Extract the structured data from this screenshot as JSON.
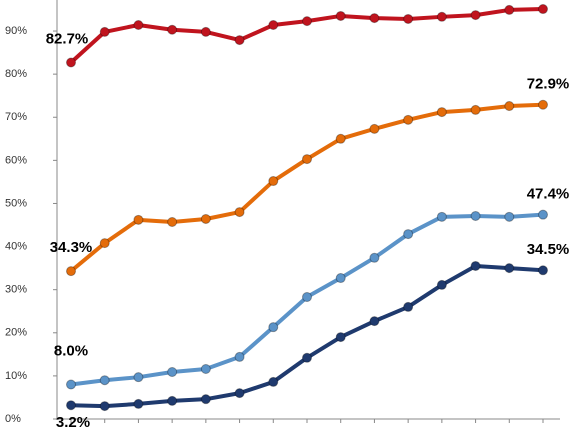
{
  "chart_data": {
    "type": "line",
    "categories": [
      null,
      null,
      null,
      null,
      null,
      null,
      null,
      null,
      null,
      null,
      null,
      null,
      null,
      null,
      null
    ],
    "ylim": [
      0,
      97.2
    ],
    "yticks": [
      {
        "value": 0,
        "label": "0%"
      },
      {
        "value": 10,
        "label": "10%"
      },
      {
        "value": 20,
        "label": "20%"
      },
      {
        "value": 30,
        "label": "30%"
      },
      {
        "value": 40,
        "label": "40%"
      },
      {
        "value": 50,
        "label": "50%"
      },
      {
        "value": 60,
        "label": "60%"
      },
      {
        "value": 70,
        "label": "70%"
      },
      {
        "value": 80,
        "label": "80%"
      },
      {
        "value": 90,
        "label": "90%"
      }
    ],
    "grid": false,
    "series": [
      {
        "color": "#c0141e",
        "values": [
          82.7,
          89.8,
          91.4,
          90.3,
          89.8,
          87.9,
          91.4,
          92.3,
          93.5,
          93.0,
          92.8,
          93.3,
          93.7,
          94.9,
          95.1
        ],
        "value_labels": [
          "82.7%",
          null,
          null,
          null,
          null,
          null,
          null,
          null,
          null,
          null,
          null,
          null,
          null,
          null,
          null
        ]
      },
      {
        "color": "#e46c0a",
        "values": [
          34.3,
          40.8,
          46.2,
          45.7,
          46.4,
          48.0,
          55.2,
          60.3,
          65.0,
          67.3,
          69.4,
          71.2,
          71.7,
          72.6,
          72.9
        ],
        "value_labels": [
          "34.3%",
          null,
          null,
          null,
          null,
          null,
          null,
          null,
          null,
          null,
          null,
          null,
          null,
          null,
          "72.9%"
        ]
      },
      {
        "color": "#5b93c8",
        "values": [
          8.0,
          9.0,
          9.7,
          10.9,
          11.6,
          14.4,
          21.3,
          28.3,
          32.7,
          37.4,
          42.9,
          46.9,
          47.1,
          46.9,
          47.4
        ],
        "value_labels": [
          "8.0%",
          null,
          null,
          null,
          null,
          null,
          null,
          null,
          null,
          null,
          null,
          null,
          null,
          null,
          "47.4%"
        ]
      },
      {
        "color": "#1f3a6e",
        "values": [
          3.2,
          3.0,
          3.5,
          4.2,
          4.6,
          6.0,
          8.6,
          14.2,
          19.0,
          22.7,
          26.0,
          31.1,
          35.5,
          35.0,
          34.5
        ],
        "value_labels": [
          "3.2%",
          null,
          null,
          null,
          null,
          null,
          null,
          null,
          null,
          null,
          null,
          null,
          null,
          null,
          "34.5%"
        ]
      }
    ]
  }
}
